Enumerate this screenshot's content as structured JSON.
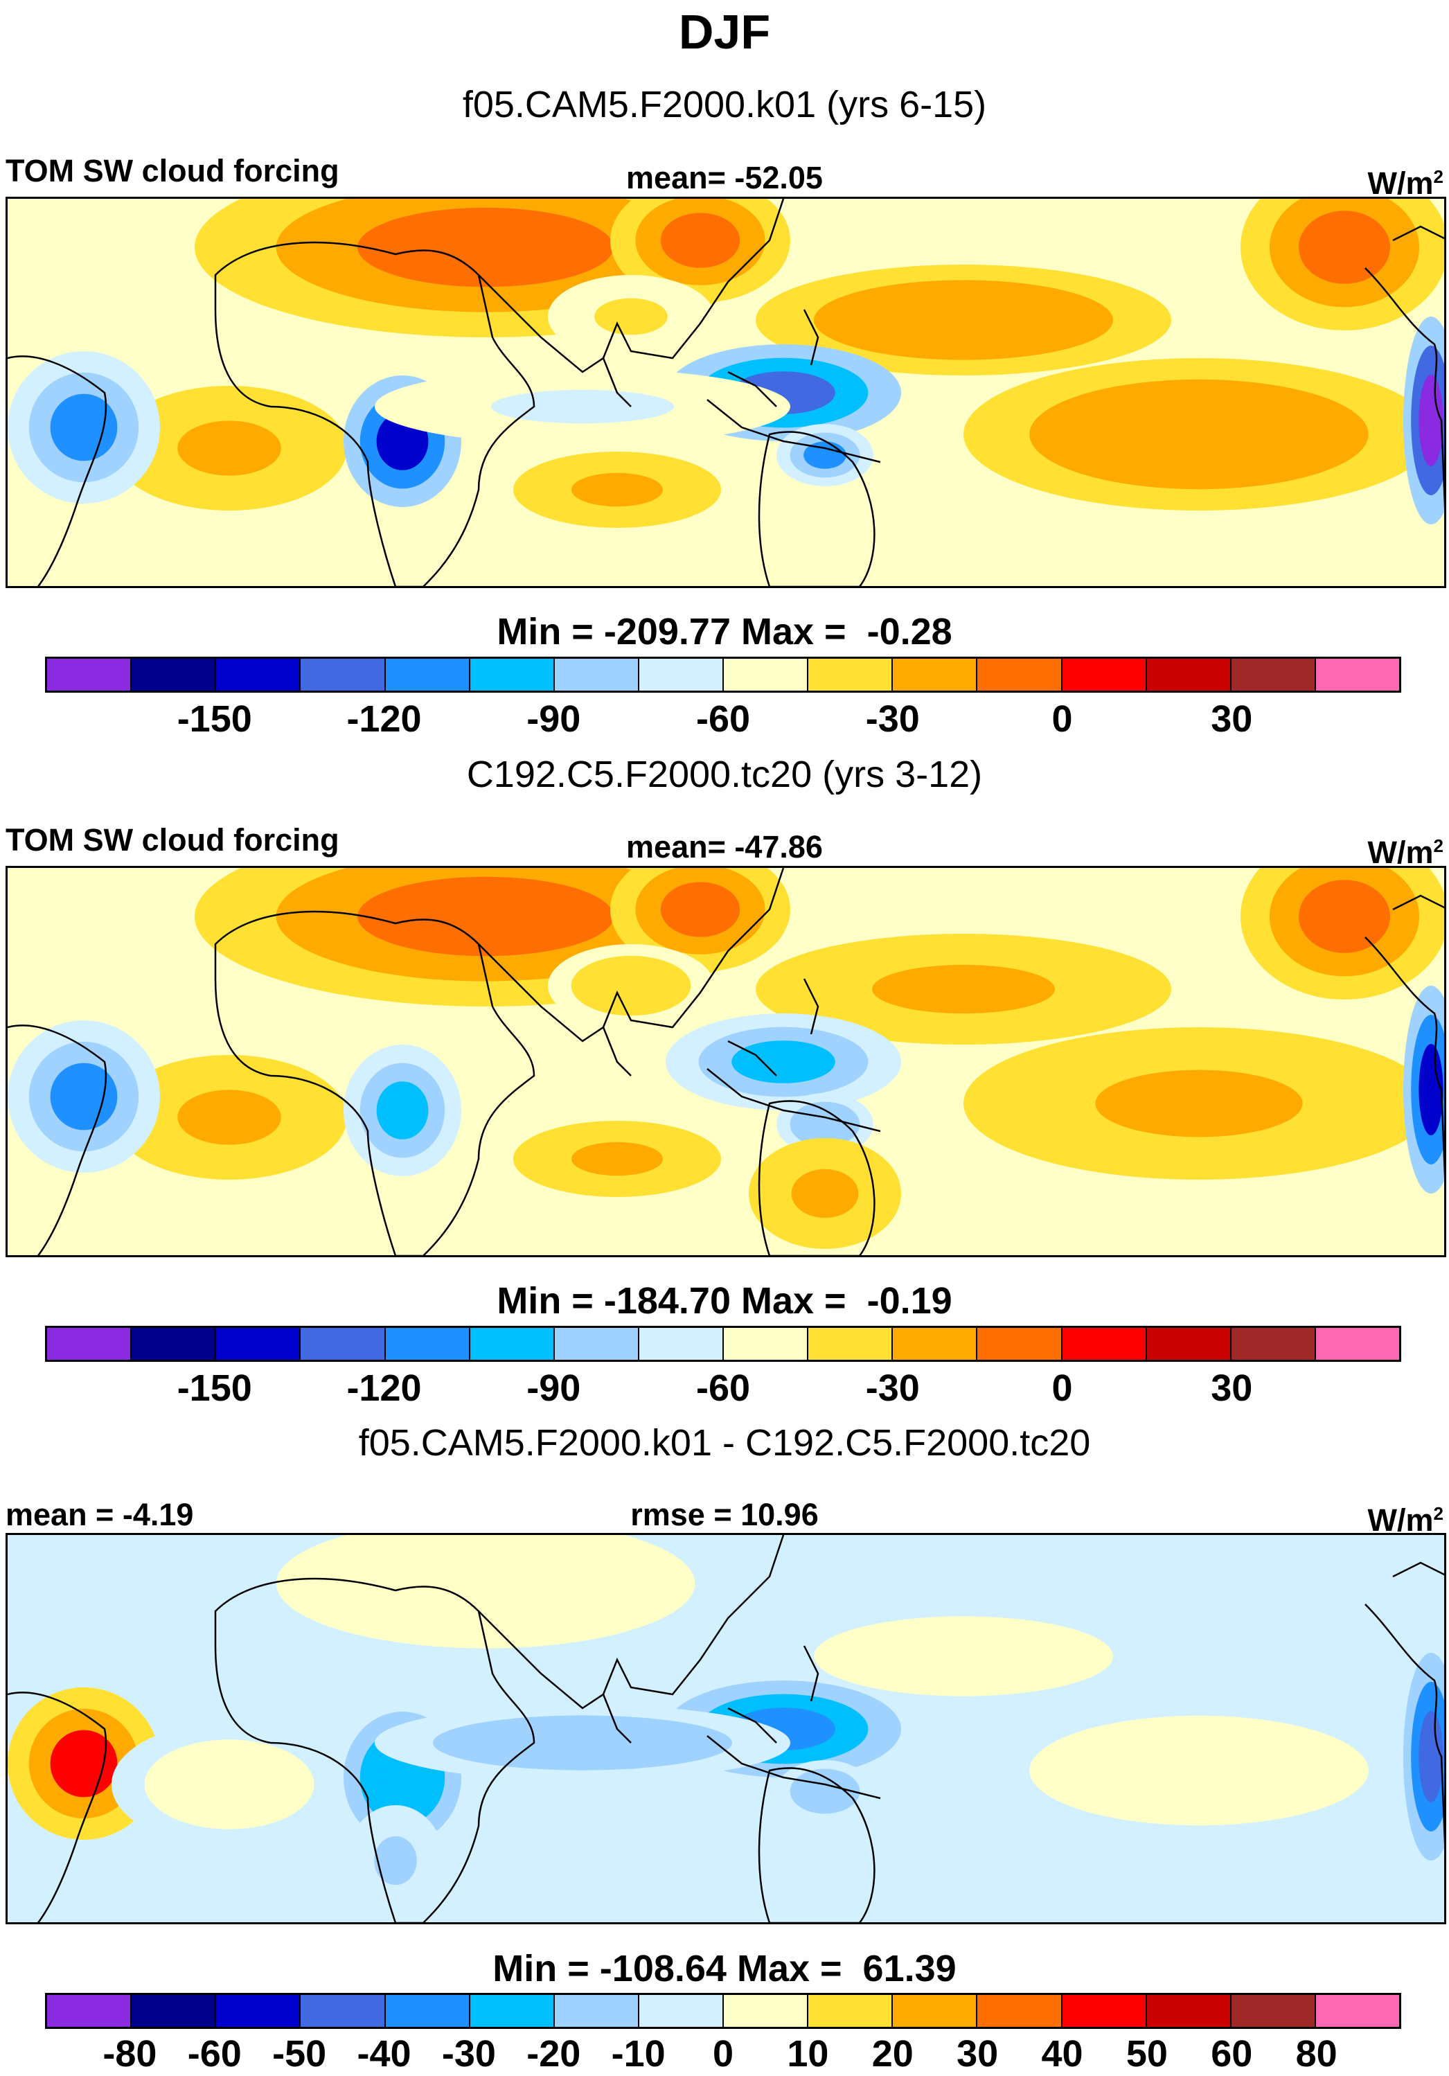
{
  "title": "DJF",
  "panels": [
    {
      "case_title": "f05.CAM5.F2000.k01 (yrs 6-15)",
      "left_label": "TOM SW cloud forcing",
      "center_label": "mean= -52.05",
      "units": "W/m",
      "units_sup": "2",
      "minmax": "Min = -209.77 Max =  -0.28",
      "scale": "abs"
    },
    {
      "case_title": "C192.C5.F2000.tc20 (yrs 3-12)",
      "left_label": "TOM SW cloud forcing",
      "center_label": "mean= -47.86",
      "units": "W/m",
      "units_sup": "2",
      "minmax": "Min = -184.70 Max =  -0.19",
      "scale": "abs"
    },
    {
      "case_title": "f05.CAM5.F2000.k01 - C192.C5.F2000.tc20",
      "left_label": "mean =  -4.19",
      "center_label": "rmse =  10.96",
      "units": "W/m",
      "units_sup": "2",
      "minmax": "Min = -108.64 Max =  61.39",
      "scale": "diff"
    }
  ],
  "colorbars": {
    "abs": {
      "colors": [
        "#8a2be2",
        "#00008b",
        "#0000cd",
        "#4169e1",
        "#1e90ff",
        "#00bfff",
        "#a0d2ff",
        "#d2f0ff",
        "#ffffc8",
        "#ffe033",
        "#ffaa00",
        "#ff6e00",
        "#ff0000",
        "#c80000",
        "#a02828",
        "#ff69b4"
      ],
      "tick_labels": [
        "-150",
        "-120",
        "-90",
        "-60",
        "-30",
        "0",
        "30"
      ],
      "tick_boundary_index": [
        2,
        4,
        6,
        8,
        10,
        12,
        14
      ]
    },
    "diff": {
      "colors": [
        "#8a2be2",
        "#00008b",
        "#0000cd",
        "#4169e1",
        "#1e90ff",
        "#00bfff",
        "#a0d2ff",
        "#d2f0ff",
        "#ffffc8",
        "#ffe033",
        "#ffaa00",
        "#ff6e00",
        "#ff0000",
        "#c80000",
        "#a02828",
        "#ff69b4"
      ],
      "tick_labels": [
        "-80",
        "-60",
        "-50",
        "-40",
        "-30",
        "-20",
        "-10",
        "0",
        "10",
        "20",
        "30",
        "40",
        "50",
        "60",
        "80"
      ],
      "tick_boundary_index": [
        1,
        2,
        3,
        4,
        5,
        6,
        7,
        8,
        9,
        10,
        11,
        12,
        13,
        14,
        15
      ]
    }
  },
  "chart_data": [
    {
      "type": "heatmap",
      "title": "TOM SW cloud forcing",
      "subtitle": "f05.CAM5.F2000.k01 (yrs 6-15)",
      "season": "DJF",
      "units": "W/m2",
      "mean": -52.05,
      "min": -209.77,
      "max": -0.28,
      "contour_levels": [
        -165,
        -150,
        -135,
        -120,
        -105,
        -90,
        -75,
        -60,
        -45,
        -30,
        -15,
        0,
        15,
        30,
        45
      ],
      "blobs": [
        {
          "region": "north-africa-arabia",
          "value": -10
        },
        {
          "region": "southeast-asia",
          "value": -10
        },
        {
          "region": "north-pacific",
          "value": -20
        },
        {
          "region": "south-pacific",
          "value": -20
        },
        {
          "region": "south-atlantic",
          "value": -25
        },
        {
          "region": "south-indian",
          "value": -25
        },
        {
          "region": "west-mexico",
          "value": -5
        },
        {
          "region": "central-africa",
          "value": -140
        },
        {
          "region": "maritime-continent",
          "value": -130
        },
        {
          "region": "amazon",
          "value": -110
        },
        {
          "region": "south-america-coast",
          "value": -170
        },
        {
          "region": "north-australia",
          "value": -110
        },
        {
          "region": "south-asia",
          "value": -45
        },
        {
          "region": "equatorial-indian",
          "value": -65
        }
      ]
    },
    {
      "type": "heatmap",
      "title": "TOM SW cloud forcing",
      "subtitle": "C192.C5.F2000.tc20 (yrs 3-12)",
      "season": "DJF",
      "units": "W/m2",
      "mean": -47.86,
      "min": -184.7,
      "max": -0.19,
      "contour_levels": [
        -165,
        -150,
        -135,
        -120,
        -105,
        -90,
        -75,
        -60,
        -45,
        -30,
        -15,
        0,
        15,
        30,
        45
      ],
      "blobs": [
        {
          "region": "north-africa-arabia",
          "value": -10
        },
        {
          "region": "southeast-asia",
          "value": -15
        },
        {
          "region": "north-pacific",
          "value": -25
        },
        {
          "region": "south-pacific",
          "value": -25
        },
        {
          "region": "south-atlantic",
          "value": -25
        },
        {
          "region": "south-indian",
          "value": -30
        },
        {
          "region": "west-mexico",
          "value": -5
        },
        {
          "region": "central-africa",
          "value": -105
        },
        {
          "region": "maritime-continent",
          "value": -100
        },
        {
          "region": "amazon",
          "value": -110
        },
        {
          "region": "south-america-coast",
          "value": -150
        },
        {
          "region": "north-australia",
          "value": -90
        },
        {
          "region": "australia-interior",
          "value": -25
        },
        {
          "region": "south-asia",
          "value": -40
        }
      ]
    },
    {
      "type": "heatmap",
      "title": "f05.CAM5.F2000.k01 - C192.C5.F2000.tc20",
      "season": "DJF",
      "units": "W/m2",
      "mean": -4.19,
      "rmse": 10.96,
      "min": -108.64,
      "max": 61.39,
      "contour_levels": [
        -80,
        -60,
        -50,
        -40,
        -30,
        -20,
        -10,
        0,
        10,
        20,
        30,
        40,
        50,
        60,
        80
      ],
      "blobs": [
        {
          "region": "amazon",
          "value": 45
        },
        {
          "region": "south-pacific",
          "value": 5
        },
        {
          "region": "north-pacific",
          "value": 5
        },
        {
          "region": "south-atlantic",
          "value": 5
        },
        {
          "region": "north-africa-arabia",
          "value": 3
        },
        {
          "region": "central-africa",
          "value": -30
        },
        {
          "region": "maritime-continent",
          "value": -35
        },
        {
          "region": "equatorial-indian",
          "value": -20
        },
        {
          "region": "north-australia",
          "value": -20
        },
        {
          "region": "south-america-coast",
          "value": -45
        },
        {
          "region": "africa-south",
          "value": -12
        }
      ]
    }
  ]
}
